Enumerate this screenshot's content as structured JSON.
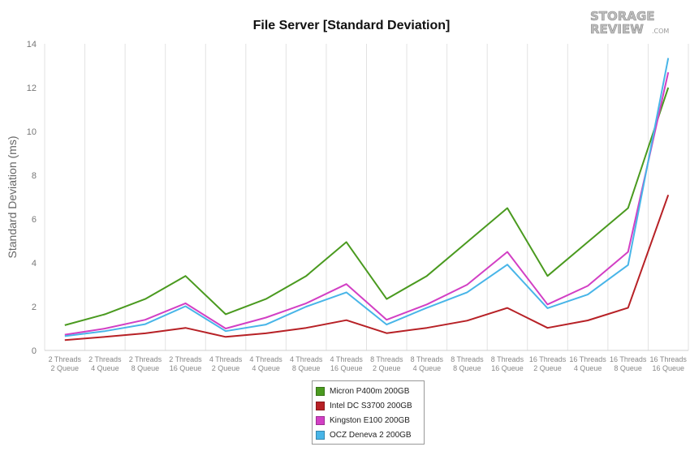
{
  "watermark": {
    "line1": "STORAGE",
    "line2": "REVIEW",
    "suffix": ".COM"
  },
  "chart_data": {
    "type": "line",
    "title": "File Server [Standard Deviation]",
    "xlabel": "",
    "ylabel": "Standard Deviation (ms)",
    "ylim": [
      0,
      14
    ],
    "yticks": [
      0,
      2,
      4,
      6,
      8,
      10,
      12,
      14
    ],
    "grid": "vertical",
    "legend_position": "bottom-center",
    "categories": [
      [
        "2 Threads",
        "2 Queue"
      ],
      [
        "2 Threads",
        "4 Queue"
      ],
      [
        "2 Threads",
        "8 Queue"
      ],
      [
        "2 Threads",
        "16 Queue"
      ],
      [
        "4 Threads",
        "2 Queue"
      ],
      [
        "4 Threads",
        "4 Queue"
      ],
      [
        "4 Threads",
        "8 Queue"
      ],
      [
        "4 Threads",
        "16 Queue"
      ],
      [
        "8 Threads",
        "2 Queue"
      ],
      [
        "8 Threads",
        "4 Queue"
      ],
      [
        "8 Threads",
        "8 Queue"
      ],
      [
        "8 Threads",
        "16 Queue"
      ],
      [
        "16 Threads",
        "2 Queue"
      ],
      [
        "16 Threads",
        "4 Queue"
      ],
      [
        "16 Threads",
        "8 Queue"
      ],
      [
        "16 Threads",
        "16 Queue"
      ]
    ],
    "series": [
      {
        "name": "Micron P400m 200GB",
        "color": "#4a9a1f",
        "values": [
          1.15,
          1.65,
          2.35,
          3.4,
          1.65,
          2.35,
          3.4,
          4.95,
          2.35,
          3.4,
          4.95,
          6.5,
          3.4,
          4.95,
          6.5,
          12.0
        ]
      },
      {
        "name": "Intel DC S3700 200GB",
        "color": "#b72126",
        "values": [
          0.47,
          0.62,
          0.78,
          1.03,
          0.62,
          0.78,
          1.03,
          1.38,
          0.79,
          1.03,
          1.36,
          1.94,
          1.03,
          1.37,
          1.95,
          7.1
        ]
      },
      {
        "name": "Kingston E100 200GB",
        "color": "#d23fc4",
        "values": [
          0.72,
          1.0,
          1.4,
          2.15,
          1.0,
          1.5,
          2.15,
          3.03,
          1.4,
          2.1,
          3.0,
          4.5,
          2.1,
          2.95,
          4.5,
          12.7
        ]
      },
      {
        "name": "OCZ Deneva 2 200GB",
        "color": "#48b5e8",
        "values": [
          0.65,
          0.88,
          1.2,
          2.02,
          0.88,
          1.18,
          2.0,
          2.65,
          1.18,
          1.95,
          2.65,
          3.92,
          1.93,
          2.55,
          3.9,
          13.35
        ]
      }
    ]
  }
}
